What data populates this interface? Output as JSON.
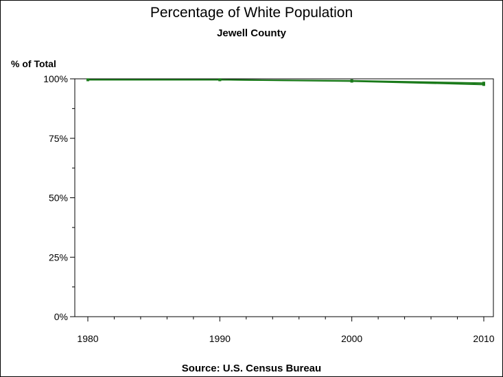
{
  "chart_data": {
    "type": "line",
    "title": "Percentage of White Population",
    "subtitle": "Jewell County",
    "ylabel": "% of Total",
    "source": "Source: U.S. Census Bureau",
    "x": [
      1980,
      1990,
      2000,
      2010
    ],
    "x_ticks": [
      "1980",
      "1990",
      "2000",
      "2010"
    ],
    "y_ticks": [
      "0%",
      "25%",
      "50%",
      "75%",
      "100%"
    ],
    "xlim": [
      1980,
      2010
    ],
    "ylim": [
      0,
      100
    ],
    "grid": false,
    "series": [
      {
        "values": [
          99.6,
          99.6,
          99.0,
          97.6
        ],
        "color": "#1a7a1a"
      },
      {
        "values": [
          99.6,
          99.6,
          99.2,
          98.2
        ],
        "color": "#1a7a1a"
      }
    ]
  }
}
